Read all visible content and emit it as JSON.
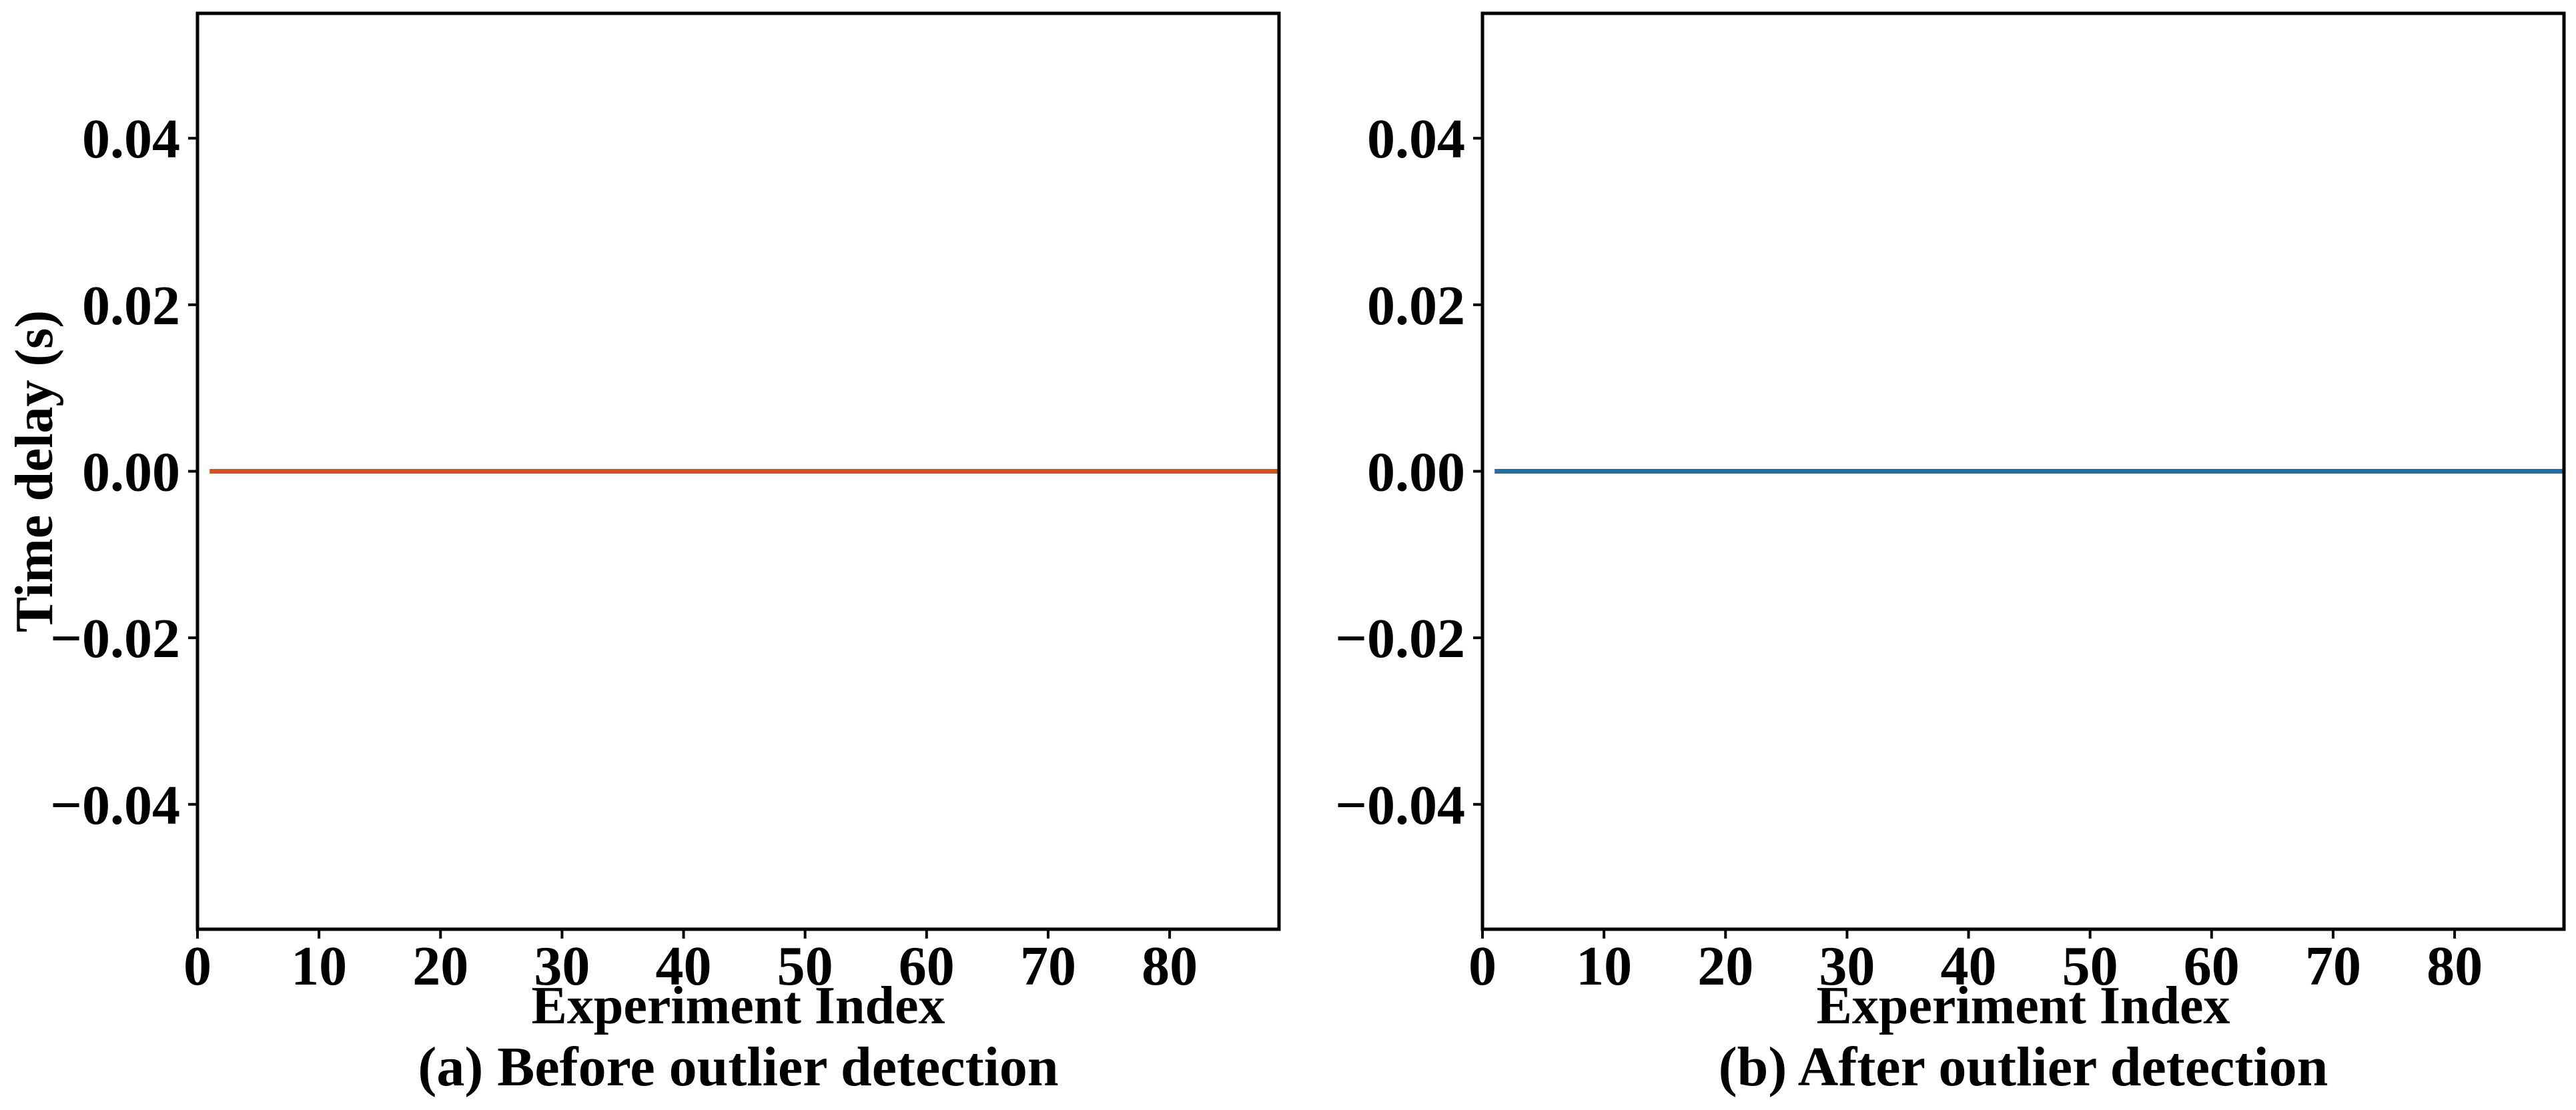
{
  "chart_data": [
    {
      "type": "line",
      "caption": "(a) Before outlier detection",
      "title": "",
      "xlabel": "Experiment Index",
      "ylabel": "Time delay (s)",
      "xlim": [
        0,
        89
      ],
      "ylim": [
        -0.055,
        0.055
      ],
      "xticks": [
        0,
        10,
        20,
        30,
        40,
        50,
        60,
        70,
        80
      ],
      "xtick_labels": [
        "0",
        "10",
        "20",
        "30",
        "40",
        "50",
        "60",
        "70",
        "80"
      ],
      "yticks": [
        0.04,
        0.02,
        0.0,
        -0.02,
        -0.04
      ],
      "ytick_labels": [
        "0.04",
        "0.02",
        "0.00",
        "−0.02",
        "−0.04"
      ],
      "grid": false,
      "series": [
        {
          "color": "#d2541f",
          "x": [
            1,
            89
          ],
          "y": [
            0,
            0
          ]
        }
      ]
    },
    {
      "type": "line",
      "caption": "(b) After outlier detection",
      "title": "",
      "xlabel": "Experiment Index",
      "ylabel": "",
      "xlim": [
        0,
        89
      ],
      "ylim": [
        -0.055,
        0.055
      ],
      "xticks": [
        0,
        10,
        20,
        30,
        40,
        50,
        60,
        70,
        80
      ],
      "xtick_labels": [
        "0",
        "10",
        "20",
        "30",
        "40",
        "50",
        "60",
        "70",
        "80"
      ],
      "yticks": [
        0.04,
        0.02,
        0.0,
        -0.02,
        -0.04
      ],
      "ytick_labels": [
        "0.04",
        "0.02",
        "0.00",
        "−0.02",
        "−0.04"
      ],
      "grid": false,
      "series": [
        {
          "color": "#1f6fa8",
          "x": [
            1,
            89
          ],
          "y": [
            0,
            0
          ]
        }
      ]
    }
  ]
}
